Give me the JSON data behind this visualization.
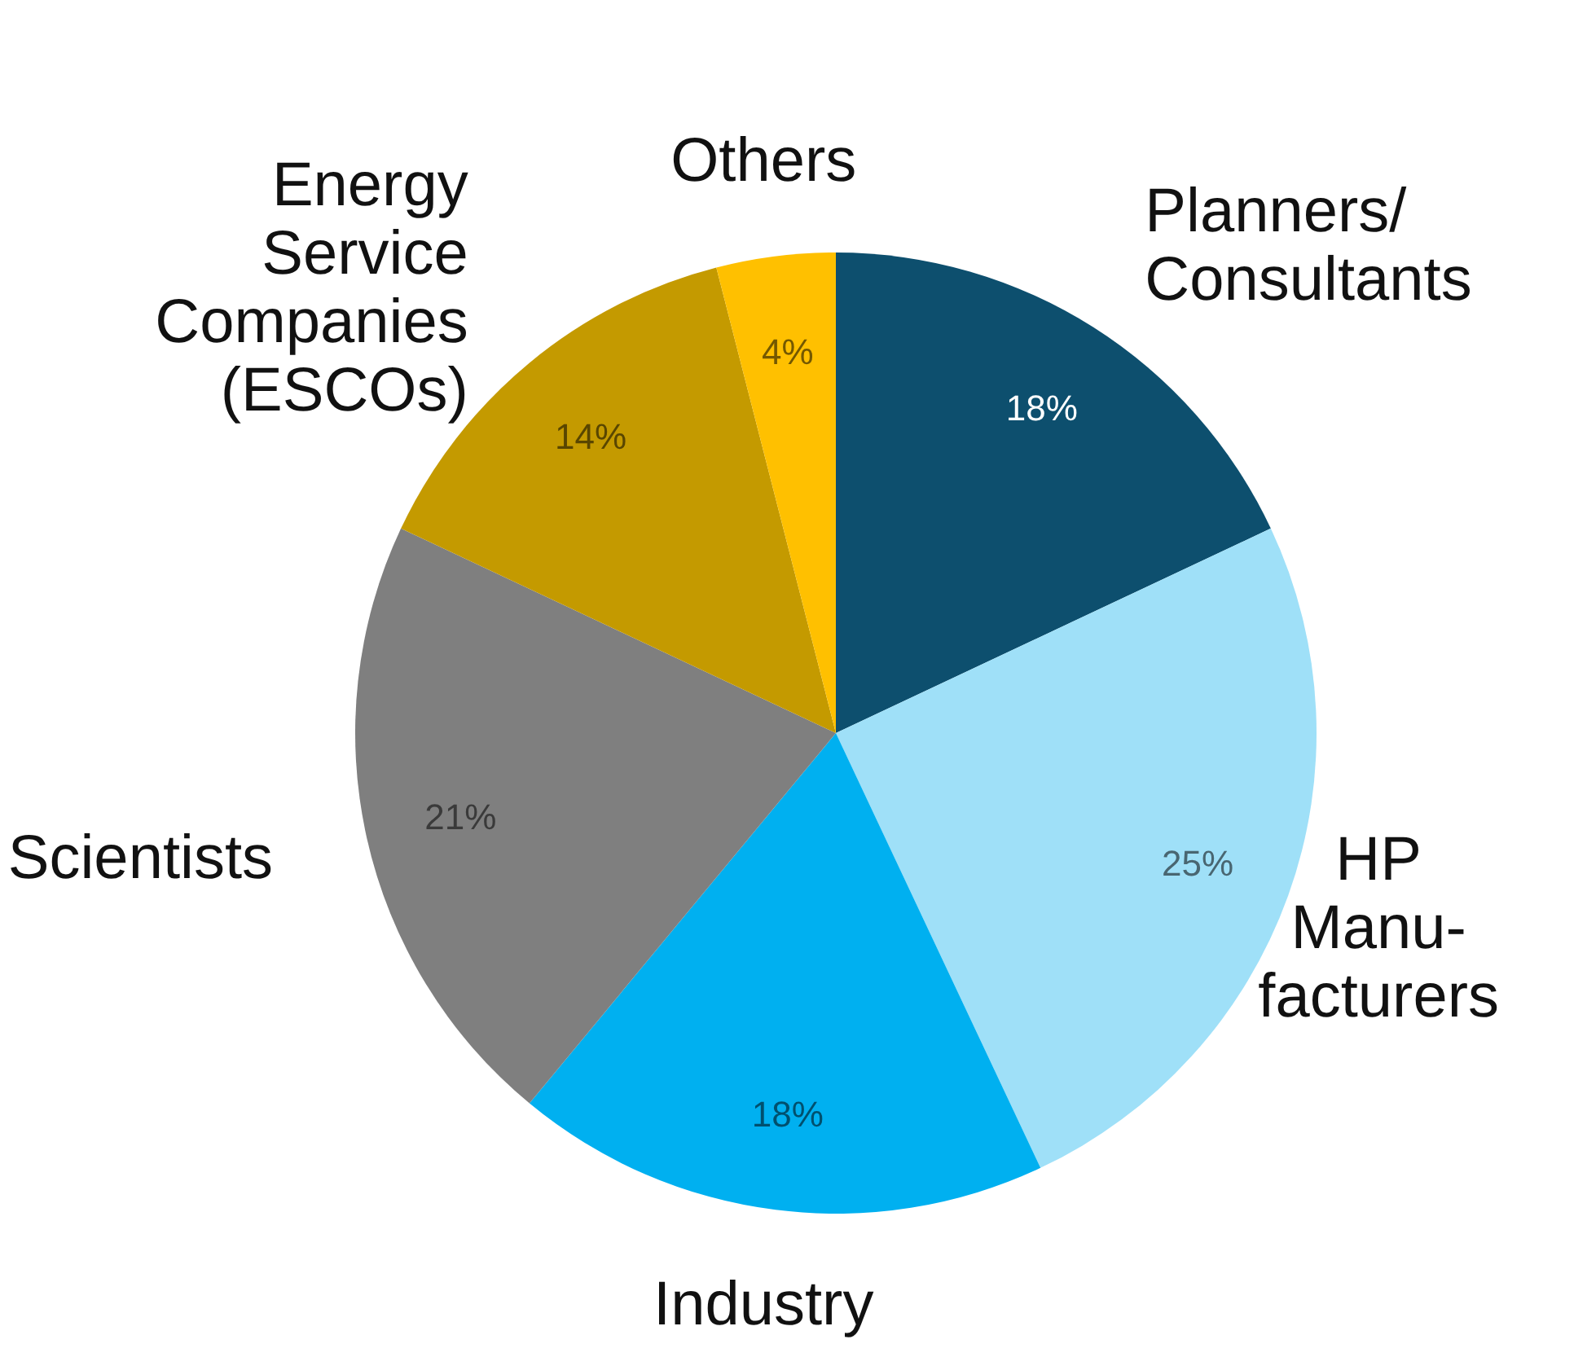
{
  "chart_data": {
    "type": "pie",
    "categories": [
      "Planners/\nConsultants",
      "HP\nManu-\nfacturers",
      "Industry",
      "Scientists",
      "Energy\nService\nCompanies\n(ESCOs)",
      "Others"
    ],
    "values": [
      18,
      25,
      18,
      21,
      14,
      4
    ],
    "colors": [
      "#0d4f6e",
      "#9fe0f8",
      "#00b0f0",
      "#7f7f7f",
      "#c49a00",
      "#ffc000"
    ],
    "value_labels": [
      "18%",
      "25%",
      "18%",
      "21%",
      "14%",
      "4%"
    ]
  }
}
